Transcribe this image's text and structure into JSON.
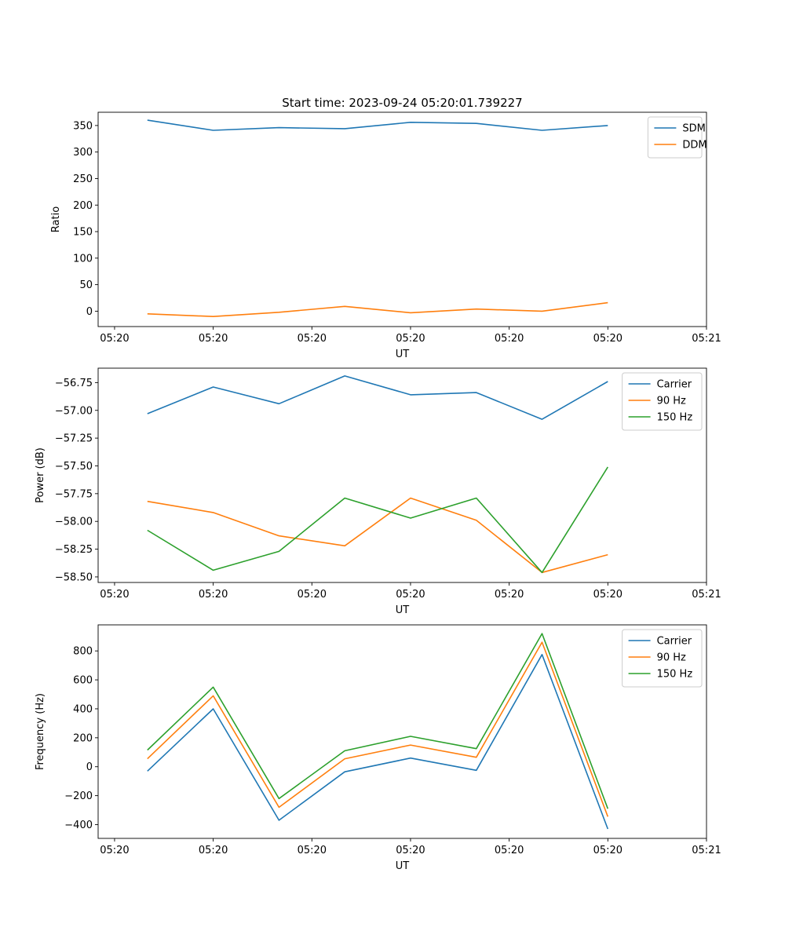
{
  "figure_title": "Start time: 2023-09-24 05:20:01.739227",
  "chart_data": [
    {
      "type": "line",
      "ylabel": "Ratio",
      "xlabel": "UT",
      "ylim": [
        -29,
        375
      ],
      "yticks": [
        0,
        50,
        100,
        150,
        200,
        250,
        300,
        350
      ],
      "ytick_labels": [
        "0",
        "50",
        "100",
        "150",
        "200",
        "250",
        "300",
        "350"
      ],
      "legend_position": "top-right",
      "series": [
        {
          "name": "SDM",
          "color": "#1f77b4",
          "values": [
            360,
            341,
            346,
            344,
            356,
            354,
            341,
            350
          ]
        },
        {
          "name": "DDM",
          "color": "#ff7f0e",
          "values": [
            -5,
            -10,
            -2,
            9,
            -3,
            4,
            0,
            16
          ]
        }
      ]
    },
    {
      "type": "line",
      "ylabel": "Power (dB)",
      "xlabel": "UT",
      "ylim": [
        -58.55,
        -56.62
      ],
      "yticks": [
        -58.5,
        -58.25,
        -58.0,
        -57.75,
        -57.5,
        -57.25,
        -57.0,
        -56.75
      ],
      "ytick_labels": [
        "−58.50",
        "−58.25",
        "−58.00",
        "−57.75",
        "−57.50",
        "−57.25",
        "−57.00",
        "−56.75"
      ],
      "legend_position": "top-right",
      "series": [
        {
          "name": "Carrier",
          "color": "#1f77b4",
          "values": [
            -57.03,
            -56.79,
            -56.94,
            -56.69,
            -56.86,
            -56.84,
            -57.08,
            -56.74
          ]
        },
        {
          "name": "90 Hz",
          "color": "#ff7f0e",
          "values": [
            -57.82,
            -57.92,
            -58.13,
            -58.22,
            -57.79,
            -57.99,
            -58.46,
            -58.3
          ]
        },
        {
          "name": "150 Hz",
          "color": "#2ca02c",
          "values": [
            -58.08,
            -58.44,
            -58.27,
            -57.79,
            -57.97,
            -57.79,
            -58.46,
            -57.51
          ]
        }
      ]
    },
    {
      "type": "line",
      "ylabel": "Frequency (Hz)",
      "xlabel": "UT",
      "ylim": [
        -495,
        980
      ],
      "yticks": [
        -400,
        -200,
        0,
        200,
        400,
        600,
        800
      ],
      "ytick_labels": [
        "−400",
        "−200",
        "0",
        "200",
        "400",
        "600",
        "800"
      ],
      "legend_position": "top-right",
      "series": [
        {
          "name": "Carrier",
          "color": "#1f77b4",
          "values": [
            -30,
            400,
            -370,
            -35,
            60,
            -25,
            775,
            -430
          ]
        },
        {
          "name": "90 Hz",
          "color": "#ff7f0e",
          "values": [
            55,
            490,
            -280,
            55,
            150,
            65,
            860,
            -345
          ]
        },
        {
          "name": "150 Hz",
          "color": "#2ca02c",
          "values": [
            115,
            550,
            -220,
            110,
            210,
            125,
            920,
            -290
          ]
        }
      ]
    }
  ],
  "x_axis": {
    "xlim": [
      -0.75,
      8.5
    ],
    "points": [
      0,
      1,
      2,
      3,
      4,
      5,
      6,
      7
    ],
    "ticks": [
      -0.5,
      1,
      2.5,
      4,
      5.5,
      7,
      8.5
    ],
    "tick_labels": [
      "05:20",
      "05:20",
      "05:20",
      "05:20",
      "05:20",
      "05:20",
      "05:21"
    ]
  }
}
